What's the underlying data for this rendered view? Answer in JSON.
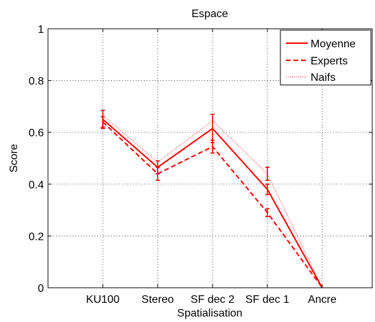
{
  "chart_data": {
    "type": "line",
    "title": "Espace",
    "xlabel": "Spatialisation",
    "ylabel": "Score",
    "categories": [
      "KU100",
      "Stereo",
      "SF dec 2",
      "SF dec 1",
      "Ancre"
    ],
    "ylim": [
      0,
      1
    ],
    "yticks": [
      "0",
      "0.2",
      "0.4",
      "0.6",
      "0.8",
      "1"
    ],
    "grid": true,
    "legend_position": "top-right",
    "series": [
      {
        "name": "Moyenne",
        "line_style": "solid",
        "color": "#ff0000",
        "values": [
          0.65,
          0.465,
          0.615,
          0.38,
          0.0
        ],
        "errors": [
          0.035,
          0.025,
          0.055,
          0.02,
          0.0
        ]
      },
      {
        "name": "Experts",
        "line_style": "dashed",
        "color": "#ff0000",
        "values": [
          0.64,
          0.44,
          0.545,
          0.29,
          0.0
        ],
        "errors": [
          0.02,
          0.025,
          0.025,
          0.015,
          0.0
        ]
      },
      {
        "name": "Naifs",
        "line_style": "dotted",
        "color": "#ff0000",
        "values": [
          0.665,
          0.485,
          0.645,
          0.44,
          0.0
        ],
        "errors": [
          0.0,
          0.0,
          0.0,
          0.025,
          0.0
        ]
      }
    ]
  }
}
